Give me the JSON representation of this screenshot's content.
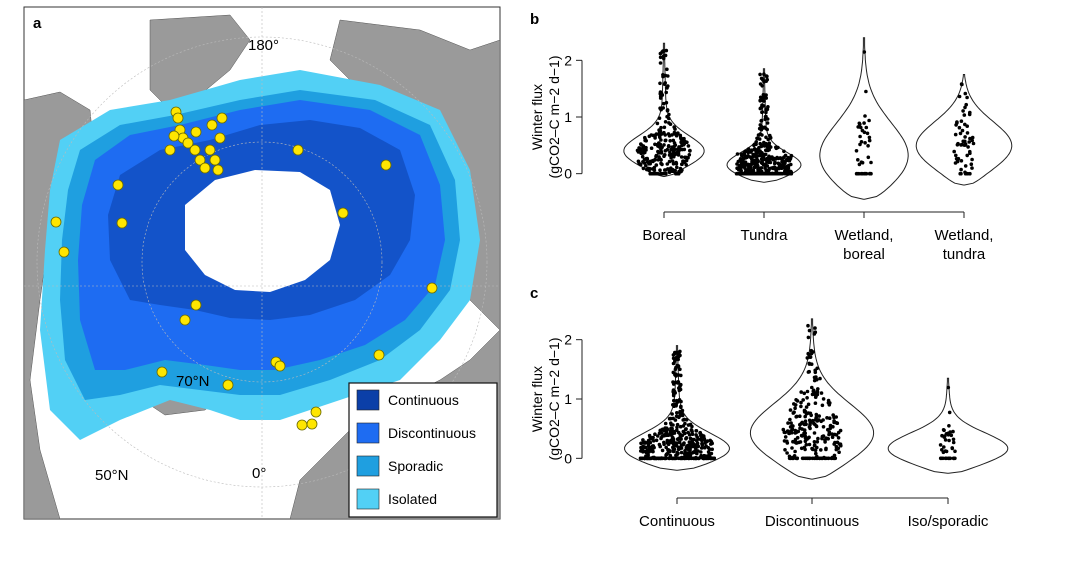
{
  "colors": {
    "continuous": "#0b3fa8",
    "discontinuous": "#1e6cf2",
    "sporadic": "#1f9fe0",
    "isolated": "#52d0f5",
    "land": "#9a9a9a",
    "ocean": "#ffffff",
    "site": "#ffe600",
    "violin_fill": "#ffffff",
    "violin_stroke": "#222222",
    "points": "#000000"
  },
  "map": {
    "panel_label": "a",
    "lon_180": "180°",
    "lon_0": "0°",
    "lat_70": "70°N",
    "lat_50": "50°N",
    "legend": [
      "Continuous",
      "Discontinuous",
      "Sporadic",
      "Isolated"
    ]
  },
  "chart_data": [
    {
      "type": "violin",
      "panel_label": "b",
      "ylabel_line1": "Winter flux",
      "ylabel_line2": "(gCO2–C m−2 d−1)",
      "ylim": [
        -0.5,
        2.5
      ],
      "yticks": [
        0,
        1,
        2
      ],
      "categories": [
        "Boreal",
        "Tundra",
        "Wetland, boreal",
        "Wetland, tundra"
      ],
      "category_lines": [
        [
          "Boreal"
        ],
        [
          "Tundra"
        ],
        [
          "Wetland,",
          "boreal"
        ],
        [
          "Wetland,",
          "tundra"
        ]
      ],
      "distributions": [
        {
          "min": -0.05,
          "max": 2.3,
          "median": 0.35,
          "mode": 0.35,
          "n_points": 260
        },
        {
          "min": -0.15,
          "max": 1.85,
          "median": 0.18,
          "mode": 0.1,
          "n_points": 420
        },
        {
          "min": -0.45,
          "max": 2.4,
          "median": 0.45,
          "mode": 0.2,
          "n_points": 40
        },
        {
          "min": -0.2,
          "max": 1.75,
          "median": 0.45,
          "mode": 0.45,
          "n_points": 60
        }
      ]
    },
    {
      "type": "violin",
      "panel_label": "c",
      "ylabel_line1": "Winter flux",
      "ylabel_line2": "(gCO2–C m−2 d−1)",
      "ylim": [
        -0.5,
        2.5
      ],
      "yticks": [
        0,
        1,
        2
      ],
      "categories": [
        "Continuous",
        "Discontinuous",
        "Iso/sporadic"
      ],
      "category_lines": [
        [
          "Continuous"
        ],
        [
          "Discontinuous"
        ],
        [
          "Iso/sporadic"
        ]
      ],
      "distributions": [
        {
          "min": -0.2,
          "max": 1.9,
          "median": 0.2,
          "mode": 0.1,
          "n_points": 500
        },
        {
          "min": -0.35,
          "max": 2.35,
          "median": 0.4,
          "mode": 0.35,
          "n_points": 260
        },
        {
          "min": -0.25,
          "max": 1.35,
          "median": 0.15,
          "mode": 0.12,
          "n_points": 40
        }
      ]
    }
  ]
}
